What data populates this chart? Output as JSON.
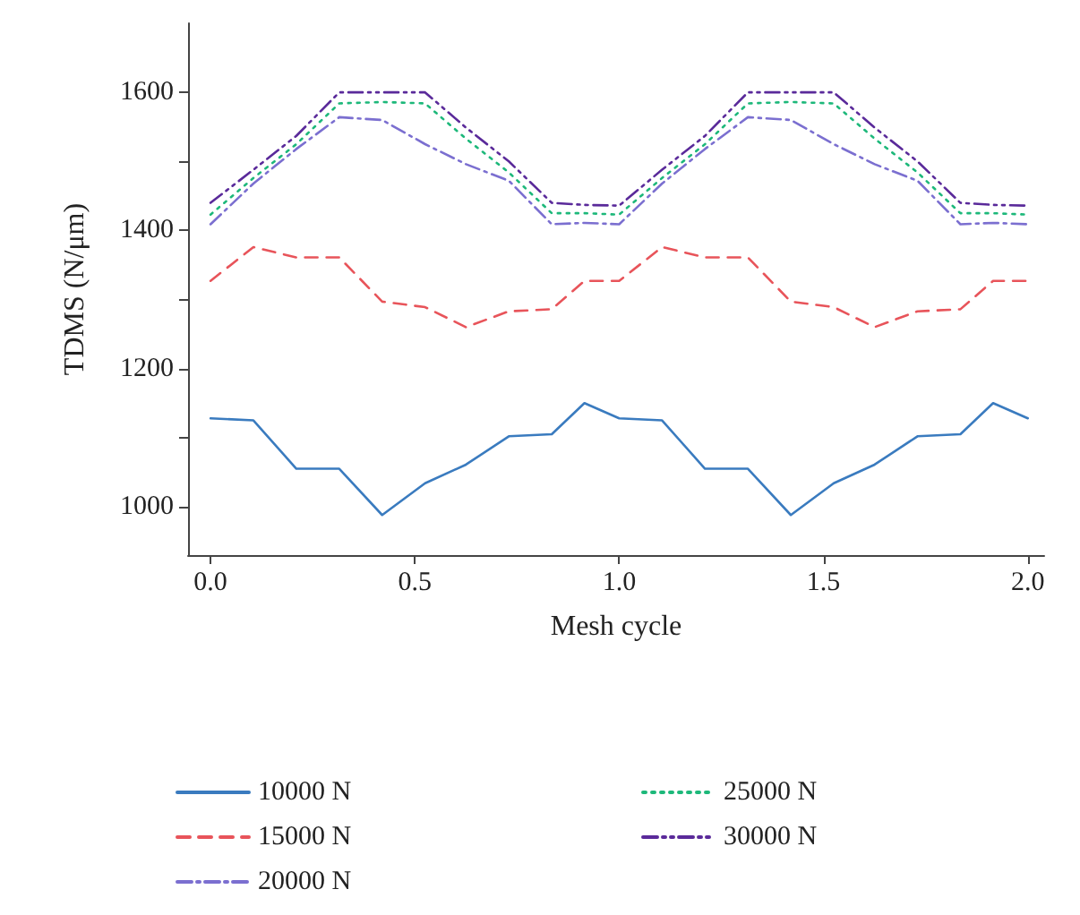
{
  "chart_data": {
    "type": "line",
    "xlabel": "Mesh cycle",
    "ylabel": "TDMS (N/μm)",
    "x": [
      0,
      0.105,
      0.21,
      0.315,
      0.42,
      0.525,
      0.625,
      0.73,
      0.835,
      0.915,
      1.0,
      1.105,
      1.21,
      1.315,
      1.42,
      1.525,
      1.625,
      1.73,
      1.835,
      1.915,
      2.0
    ],
    "series": [
      {
        "name": "10000 N",
        "color": "#3a7bbf",
        "line_style": "solid",
        "values": [
          1128,
          1125,
          1055,
          1055,
          988,
          1034,
          1061,
          1102,
          1105,
          1150,
          1128,
          1125,
          1055,
          1055,
          988,
          1034,
          1061,
          1102,
          1105,
          1150,
          1128
        ]
      },
      {
        "name": "15000 N",
        "color": "#e8545a",
        "line_style": "dashed",
        "values": [
          1327,
          1376,
          1361,
          1361,
          1297,
          1289,
          1260,
          1283,
          1286,
          1327,
          1327,
          1376,
          1361,
          1361,
          1297,
          1289,
          1260,
          1283,
          1286,
          1327,
          1327
        ]
      },
      {
        "name": "20000 N",
        "color": "#7b6fd0",
        "line_style": "dashdot",
        "values": [
          1409,
          1468,
          1518,
          1564,
          1560,
          1525,
          1496,
          1472,
          1409,
          1411,
          1409,
          1468,
          1518,
          1564,
          1560,
          1525,
          1496,
          1472,
          1409,
          1411,
          1409
        ]
      },
      {
        "name": "25000 N",
        "color": "#1db87a",
        "line_style": "dotted",
        "values": [
          1423,
          1476,
          1525,
          1584,
          1586,
          1584,
          1533,
          1484,
          1425,
          1425,
          1423,
          1476,
          1525,
          1584,
          1586,
          1584,
          1533,
          1484,
          1425,
          1425,
          1423
        ]
      },
      {
        "name": "30000 N",
        "color": "#5a2a9a",
        "line_style": "dashdotdot",
        "values": [
          1440,
          1488,
          1537,
          1600,
          1600,
          1600,
          1549,
          1500,
          1440,
          1437,
          1436,
          1488,
          1537,
          1600,
          1600,
          1600,
          1549,
          1500,
          1440,
          1437,
          1436
        ]
      }
    ],
    "xlim": [
      -0.055,
      2.04
    ],
    "xticks": [
      {
        "value": 0,
        "label": "0.0"
      },
      {
        "value": 0.5,
        "label": "0.5"
      },
      {
        "value": 1,
        "label": "1.0"
      },
      {
        "value": 1.5,
        "label": "1.5"
      },
      {
        "value": 2,
        "label": "2.0"
      }
    ],
    "ylim": [
      930,
      1700
    ],
    "yticks": [
      1000,
      {
        "value": 1100,
        "label": null
      },
      1200,
      {
        "value": 1300,
        "label": null
      },
      1400,
      {
        "value": 1500,
        "label": null
      },
      1600
    ],
    "grid": false,
    "legend": "bottom",
    "marker": "none"
  }
}
